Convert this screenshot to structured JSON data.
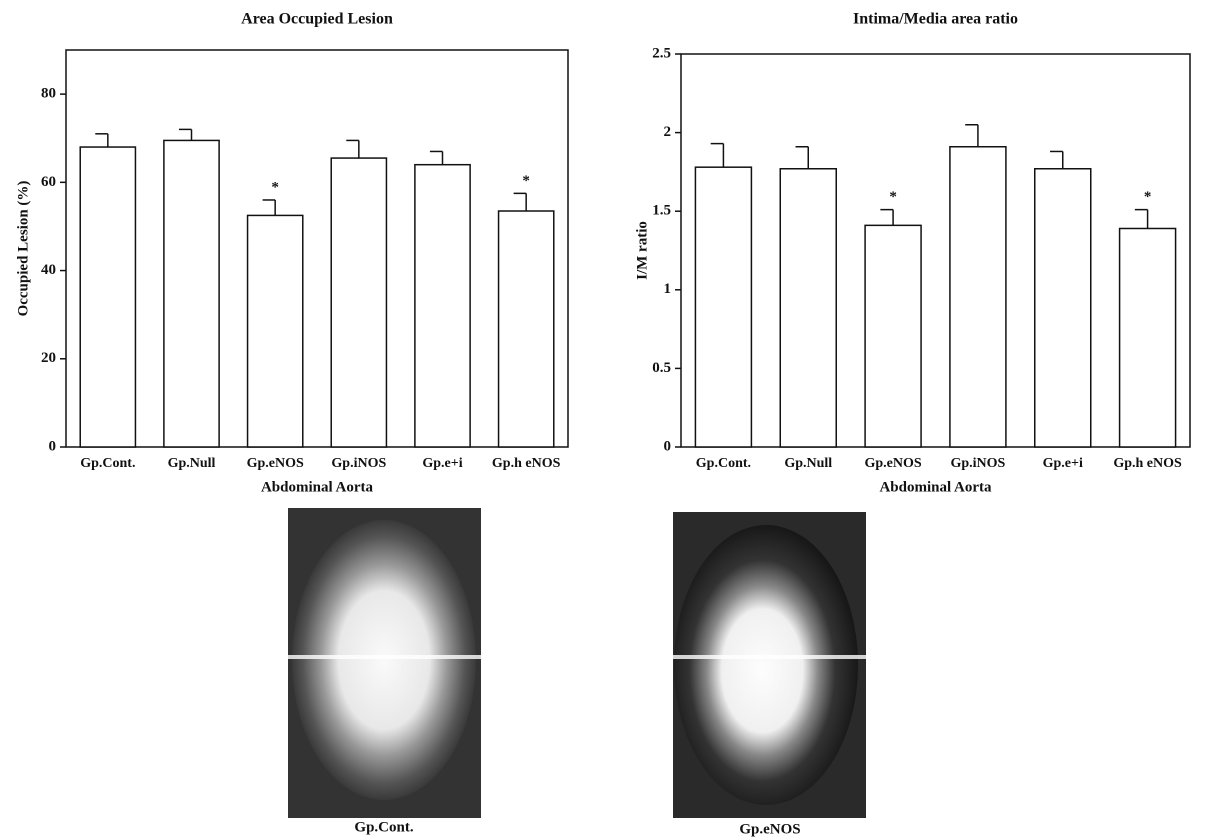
{
  "chart_data": [
    {
      "type": "bar",
      "title": "Area Occupied Lesion",
      "y_label": "Occupied Lesion (%)",
      "x_label": "Abdominal Aorta",
      "categories": [
        "Gp.Cont.",
        "Gp.Null",
        "Gp.eNOS",
        "Gp.iNOS",
        "Gp.e+i",
        "Gp.h eNOS"
      ],
      "values": [
        68,
        69.5,
        52.5,
        65.5,
        64,
        53.5
      ],
      "errors": [
        3,
        2.5,
        3.5,
        4,
        3,
        4
      ],
      "color": "#ffffff",
      "ylim": [
        0,
        90
      ],
      "yticks": [
        0,
        20,
        40,
        60,
        80
      ],
      "annotations": [
        {
          "category": "Gp.eNOS",
          "text": "*"
        },
        {
          "category": "Gp.h eNOS",
          "text": "*"
        }
      ]
    },
    {
      "type": "bar",
      "title": "Intima/Media area ratio",
      "y_label": "I/M ratio",
      "x_label": "Abdominal Aorta",
      "categories": [
        "Gp.Cont.",
        "Gp.Null",
        "Gp.eNOS",
        "Gp.iNOS",
        "Gp.e+i",
        "Gp.h eNOS"
      ],
      "values": [
        1.78,
        1.77,
        1.41,
        1.91,
        1.77,
        1.39
      ],
      "errors": [
        0.15,
        0.14,
        0.1,
        0.14,
        0.11,
        0.12
      ],
      "color": "#ffffff",
      "ylim": [
        0,
        2.5
      ],
      "yticks": [
        0,
        0.5,
        1,
        1.5,
        2,
        2.5
      ],
      "annotations": [
        {
          "category": "Gp.eNOS",
          "text": "*"
        },
        {
          "category": "Gp.h eNOS",
          "text": "*"
        }
      ]
    }
  ],
  "images": [
    {
      "caption": "Gp.Cont."
    },
    {
      "caption": "Gp.eNOS"
    }
  ]
}
